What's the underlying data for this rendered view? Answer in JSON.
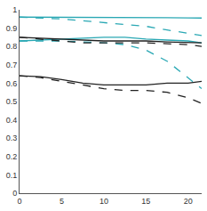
{
  "chart_data": {
    "type": "line",
    "x": [
      0,
      2.5,
      5,
      7.5,
      10,
      12.5,
      15,
      17.5,
      20,
      21.6
    ],
    "series": [
      {
        "color": "#2aa8b4",
        "line_style": "solid",
        "values": [
          0.96,
          0.96,
          0.96,
          0.96,
          0.96,
          0.96,
          0.958,
          0.957,
          0.956,
          0.955
        ]
      },
      {
        "color": "#2aa8b4",
        "line_style": "dashed",
        "values": [
          0.96,
          0.955,
          0.95,
          0.94,
          0.93,
          0.92,
          0.91,
          0.89,
          0.87,
          0.86
        ]
      },
      {
        "color": "#2aa8b4",
        "line_style": "solid",
        "values": [
          0.83,
          0.835,
          0.84,
          0.845,
          0.85,
          0.85,
          0.84,
          0.835,
          0.83,
          0.82
        ]
      },
      {
        "color": "#2aa8b4",
        "line_style": "dashed",
        "values": [
          0.83,
          0.83,
          0.83,
          0.825,
          0.82,
          0.81,
          0.78,
          0.72,
          0.63,
          0.57
        ]
      },
      {
        "color": "#222222",
        "line_style": "solid",
        "values": [
          0.85,
          0.845,
          0.84,
          0.835,
          0.83,
          0.83,
          0.83,
          0.825,
          0.82,
          0.82
        ]
      },
      {
        "color": "#222222",
        "line_style": "dashed",
        "values": [
          0.85,
          0.84,
          0.83,
          0.82,
          0.82,
          0.82,
          0.82,
          0.815,
          0.81,
          0.8
        ]
      },
      {
        "color": "#222222",
        "line_style": "solid",
        "values": [
          0.64,
          0.635,
          0.62,
          0.6,
          0.59,
          0.59,
          0.59,
          0.6,
          0.6,
          0.61
        ]
      },
      {
        "color": "#222222",
        "line_style": "dashed",
        "values": [
          0.64,
          0.63,
          0.61,
          0.59,
          0.57,
          0.56,
          0.56,
          0.55,
          0.52,
          0.49
        ]
      }
    ],
    "xlim": [
      0,
      21.6
    ],
    "xticks": [
      0,
      5,
      10,
      15,
      20
    ],
    "ylim": [
      0,
      1
    ],
    "yticks": [
      0,
      0.1,
      0.2,
      0.3,
      0.4,
      0.5,
      0.6,
      0.7,
      0.8,
      0.9,
      1
    ],
    "grid": false
  }
}
